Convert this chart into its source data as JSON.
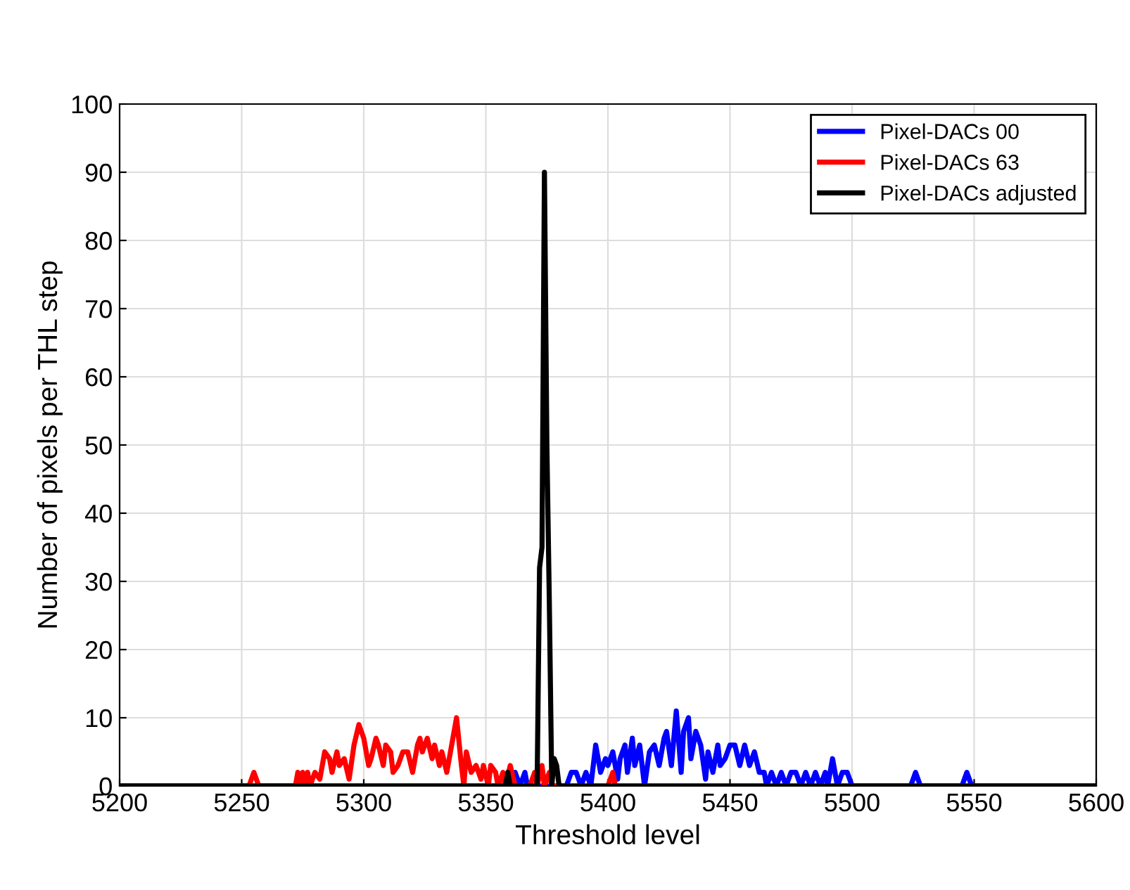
{
  "chart_data": {
    "type": "line",
    "xlabel": "Threshold level",
    "ylabel": "Number of pixels per THL step",
    "xlim": [
      5200,
      5600
    ],
    "xticks": [
      5200,
      5250,
      5300,
      5350,
      5400,
      5450,
      5500,
      5550,
      5600
    ],
    "ylim": [
      0,
      100
    ],
    "yticks": [
      0,
      10,
      20,
      30,
      40,
      50,
      60,
      70,
      80,
      90,
      100
    ],
    "grid": true,
    "legend": "top right",
    "marker": "none",
    "line_style": "solid",
    "series": [
      {
        "name": "Pixel-DACs 00",
        "color": "#0000ff",
        "x": [
          5200,
          5360,
          5362,
          5364,
          5366,
          5367,
          5383,
          5385,
          5387,
          5389,
          5391,
          5393,
          5395,
          5397,
          5399,
          5400,
          5402,
          5404,
          5405,
          5407,
          5408,
          5410,
          5411,
          5413,
          5415,
          5417,
          5419,
          5421,
          5423,
          5424,
          5426,
          5428,
          5430,
          5431,
          5433,
          5434,
          5436,
          5438,
          5440,
          5441,
          5443,
          5445,
          5446,
          5448,
          5450,
          5452,
          5454,
          5456,
          5458,
          5460,
          5462,
          5464,
          5465,
          5467,
          5469,
          5471,
          5473,
          5475,
          5477,
          5479,
          5481,
          5483,
          5485,
          5487,
          5489,
          5490,
          5492,
          5494,
          5496,
          5498,
          5500,
          5524,
          5526,
          5528,
          5545,
          5547,
          5549,
          5600
        ],
        "values": [
          0,
          0,
          2,
          0,
          2,
          0,
          0,
          2,
          2,
          0,
          2,
          0,
          6,
          2,
          4,
          3,
          5,
          1,
          4,
          6,
          2,
          7,
          3,
          6,
          0,
          5,
          6,
          3,
          7,
          8,
          3,
          11,
          2,
          8,
          10,
          4,
          8,
          6,
          1,
          5,
          2,
          6,
          3,
          4,
          6,
          6,
          3,
          6,
          3,
          5,
          2,
          2,
          0,
          2,
          0,
          2,
          0,
          2,
          2,
          0,
          2,
          0,
          2,
          0,
          2,
          0,
          4,
          0,
          2,
          2,
          0,
          0,
          2,
          0,
          0,
          2,
          0,
          0
        ]
      },
      {
        "name": "Pixel-DACs 63",
        "color": "#ff0000",
        "x": [
          5200,
          5253,
          5255,
          5257,
          5272,
          5273,
          5274,
          5275,
          5276,
          5277,
          5278,
          5280,
          5282,
          5284,
          5286,
          5287,
          5289,
          5290,
          5292,
          5294,
          5296,
          5298,
          5300,
          5302,
          5303,
          5305,
          5306,
          5308,
          5309,
          5311,
          5312,
          5314,
          5316,
          5318,
          5320,
          5322,
          5323,
          5324,
          5326,
          5328,
          5329,
          5331,
          5332,
          5334,
          5336,
          5338,
          5340,
          5341,
          5342,
          5344,
          5346,
          5348,
          5349,
          5351,
          5352,
          5354,
          5355,
          5357,
          5358,
          5360,
          5362,
          5368,
          5370,
          5371,
          5373,
          5374,
          5376,
          5377,
          5380,
          5400,
          5402,
          5403,
          5600
        ],
        "values": [
          0,
          0,
          2,
          0,
          0,
          2,
          0,
          2,
          0,
          2,
          0,
          2,
          1,
          5,
          4,
          2,
          5,
          3,
          4,
          1,
          6,
          9,
          7,
          3,
          4,
          7,
          6,
          3,
          6,
          5,
          2,
          3,
          5,
          5,
          2,
          6,
          7,
          5,
          7,
          4,
          6,
          3,
          5,
          2,
          6,
          10,
          3,
          0,
          5,
          2,
          3,
          1,
          3,
          0,
          3,
          2,
          0,
          2,
          0,
          3,
          0,
          0,
          2,
          0,
          3,
          0,
          2,
          0,
          0,
          0,
          2,
          0,
          0
        ]
      },
      {
        "name": "Pixel-DACs adjusted",
        "color": "#000000",
        "x": [
          5200,
          5358,
          5359,
          5360,
          5371,
          5372,
          5373,
          5374,
          5375,
          5376,
          5377,
          5378,
          5379,
          5380,
          5600
        ],
        "values": [
          0,
          0,
          2,
          0,
          0,
          32,
          35,
          90,
          50,
          27,
          0,
          4,
          3,
          0,
          0
        ]
      }
    ]
  }
}
